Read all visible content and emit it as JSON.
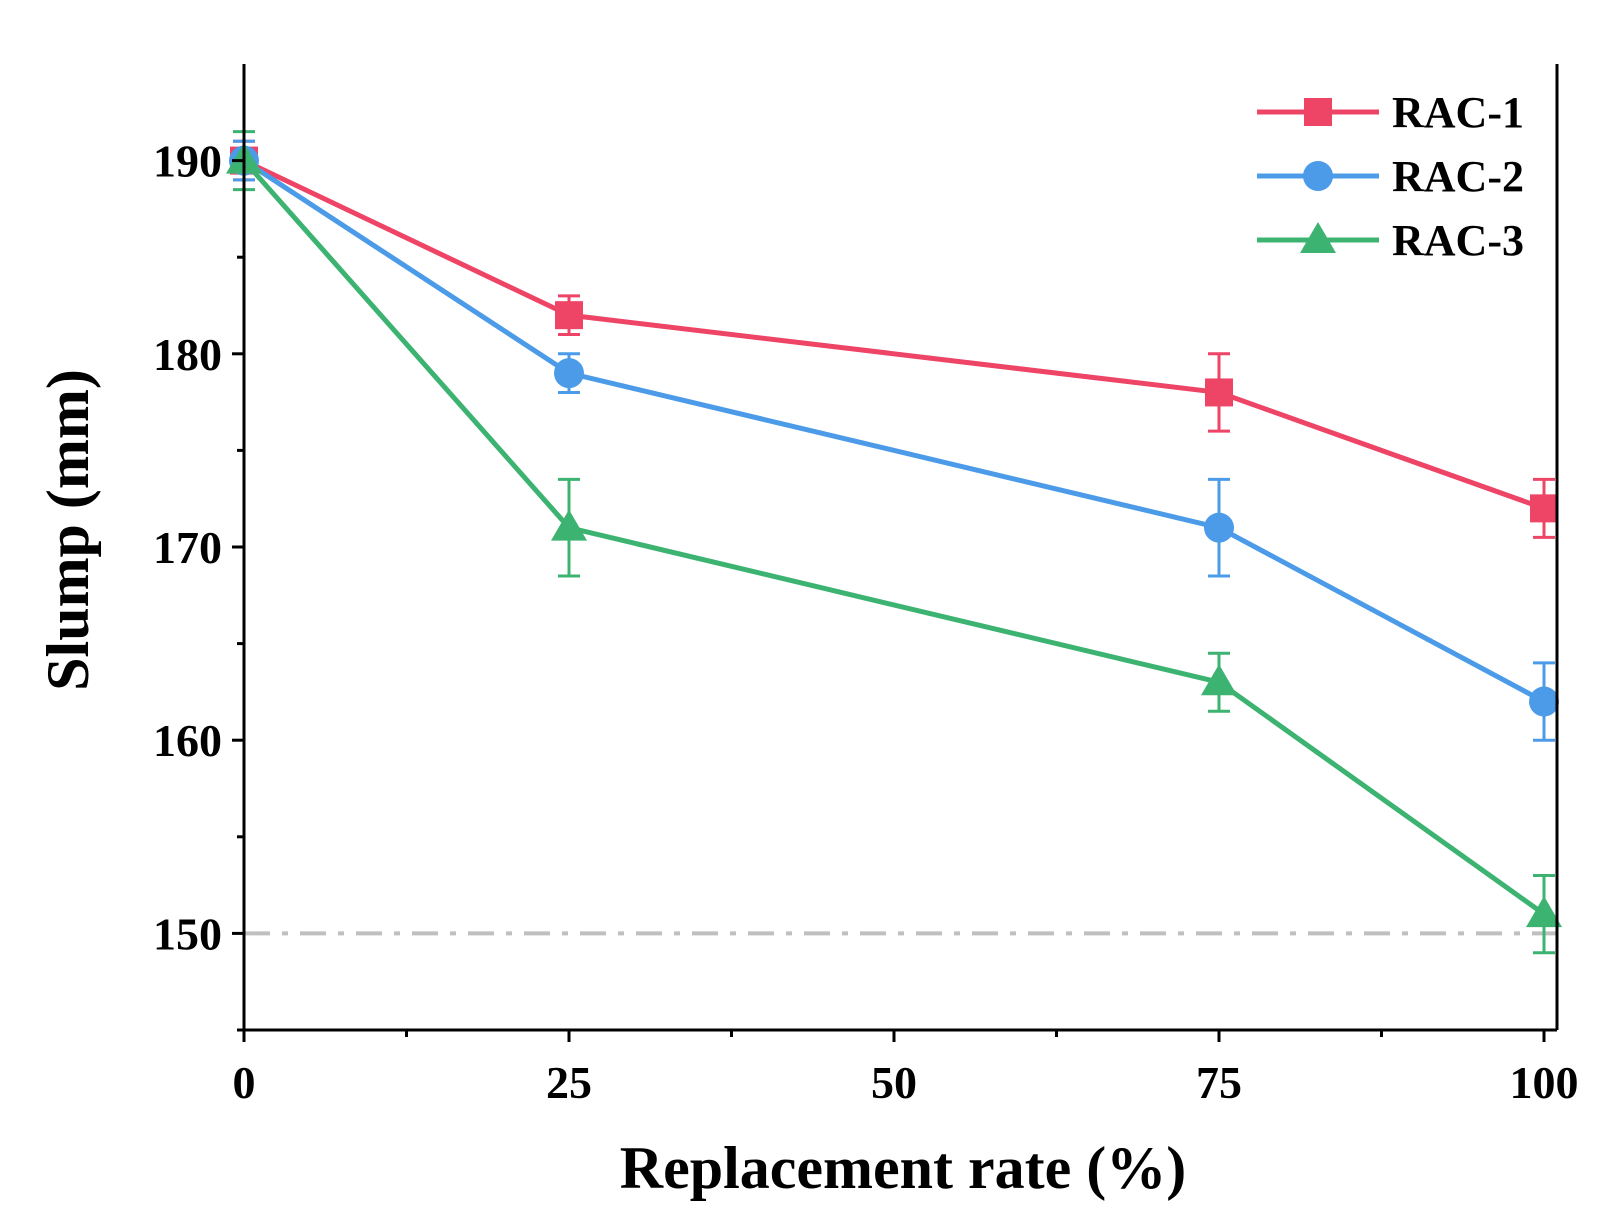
{
  "chart_data": {
    "type": "line",
    "title": "",
    "xlabel": "Replacement rate (%)",
    "ylabel": "Slump (mm)",
    "x": [
      0,
      25,
      75,
      100
    ],
    "xlim": [
      0,
      101
    ],
    "ylim": [
      145,
      195
    ],
    "xticks": [
      0,
      25,
      50,
      75,
      100
    ],
    "xtick_labels": [
      "0",
      "25",
      "50",
      "75",
      "100"
    ],
    "xminor": [
      12.5,
      37.5,
      62.5,
      87.5
    ],
    "yticks": [
      150,
      160,
      170,
      180,
      190
    ],
    "ytick_labels": [
      "150",
      "160",
      "170",
      "180",
      "190"
    ],
    "yminor": [
      145,
      155,
      165,
      175,
      185
    ],
    "reference_line": {
      "y": 150,
      "color": "#bfbfbf",
      "style": "dash-dot"
    },
    "legend_position": "top-right",
    "series": [
      {
        "name": "RAC-1",
        "marker": "square",
        "color": "#ee4466",
        "values": [
          190,
          182,
          178,
          172
        ],
        "errors": [
          1,
          1,
          2,
          1.5
        ]
      },
      {
        "name": "RAC-2",
        "marker": "circle",
        "color": "#4c9be8",
        "values": [
          190,
          179,
          171,
          162
        ],
        "errors": [
          1,
          1,
          2.5,
          2
        ]
      },
      {
        "name": "RAC-3",
        "marker": "triangle",
        "color": "#3cb371",
        "values": [
          190,
          171,
          163,
          151
        ],
        "errors": [
          1.5,
          2.5,
          1.5,
          2
        ]
      }
    ]
  }
}
